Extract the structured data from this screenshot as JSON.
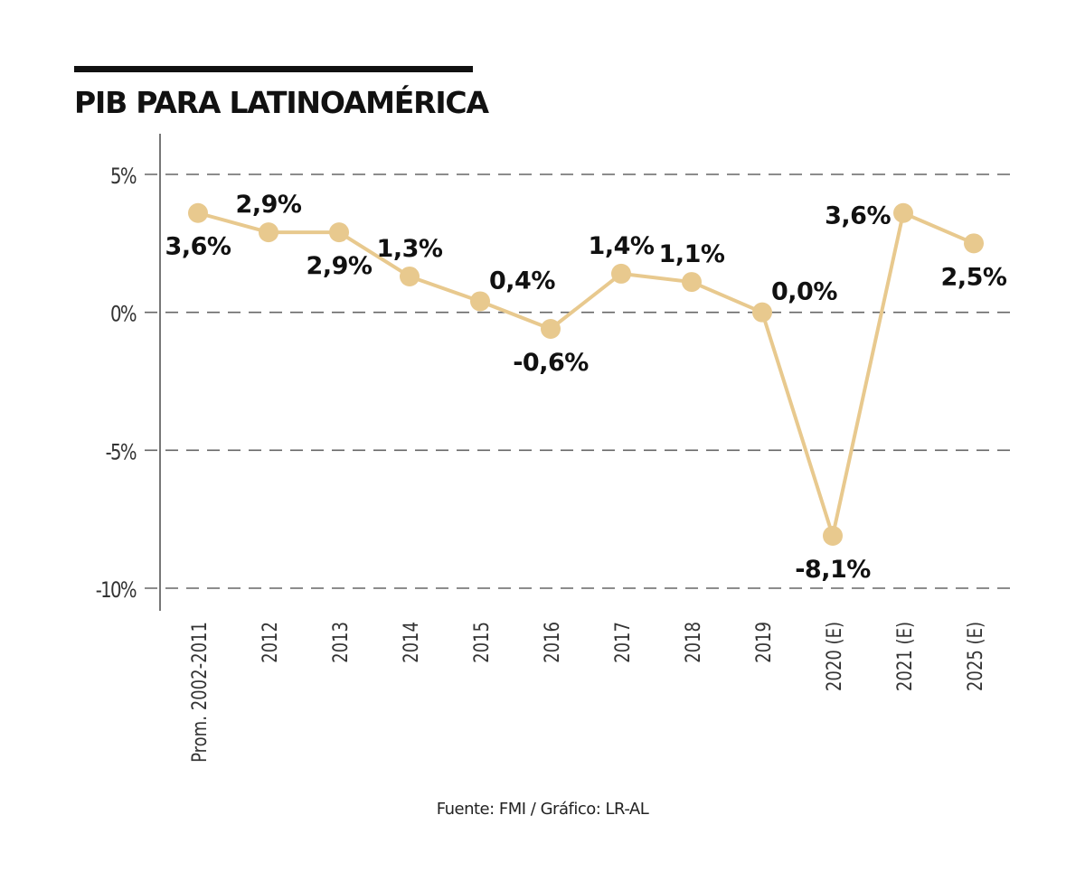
{
  "title": "PIB PARA LATINOAMÉRICA",
  "source": "Fuente: FMI / Gráfico: LR-AL",
  "colors": {
    "line": "#e8c98e",
    "marker": "#e8c98e",
    "grid": "#666666",
    "axis": "#777777",
    "label": "#111111",
    "tick": "#333333"
  },
  "chart_data": {
    "type": "line",
    "title": "PIB PARA LATINOAMÉRICA",
    "xlabel": "",
    "ylabel": "",
    "categories": [
      "Prom. 2002-2011",
      "2012",
      "2013",
      "2014",
      "2015",
      "2016",
      "2017",
      "2018",
      "2019",
      "2020 (E)",
      "2021 (E)",
      "2025 (E)"
    ],
    "series": [
      {
        "name": "PIB",
        "values": [
          3.6,
          2.9,
          2.9,
          1.3,
          0.4,
          -0.6,
          1.4,
          1.1,
          0.0,
          -8.1,
          3.6,
          2.5
        ],
        "data_labels": [
          "3,6%",
          "2,9%",
          "2,9%",
          "1,3%",
          "0,4%",
          "-0,6%",
          "1,4%",
          "1,1%",
          "0,0%",
          "-8,1%",
          "3,6%",
          "2,5%"
        ],
        "label_positions": [
          "below",
          "above",
          "below",
          "above",
          "above-right",
          "below",
          "above",
          "above",
          "above-right",
          "below",
          "left",
          "below"
        ]
      }
    ],
    "yticks": [
      5,
      0,
      -5,
      -10
    ],
    "ytick_labels": [
      "5%",
      "0%",
      "-5%",
      "-10%"
    ],
    "ylim": [
      -10,
      5
    ],
    "grid": "horizontal-dashed",
    "legend": "none"
  }
}
